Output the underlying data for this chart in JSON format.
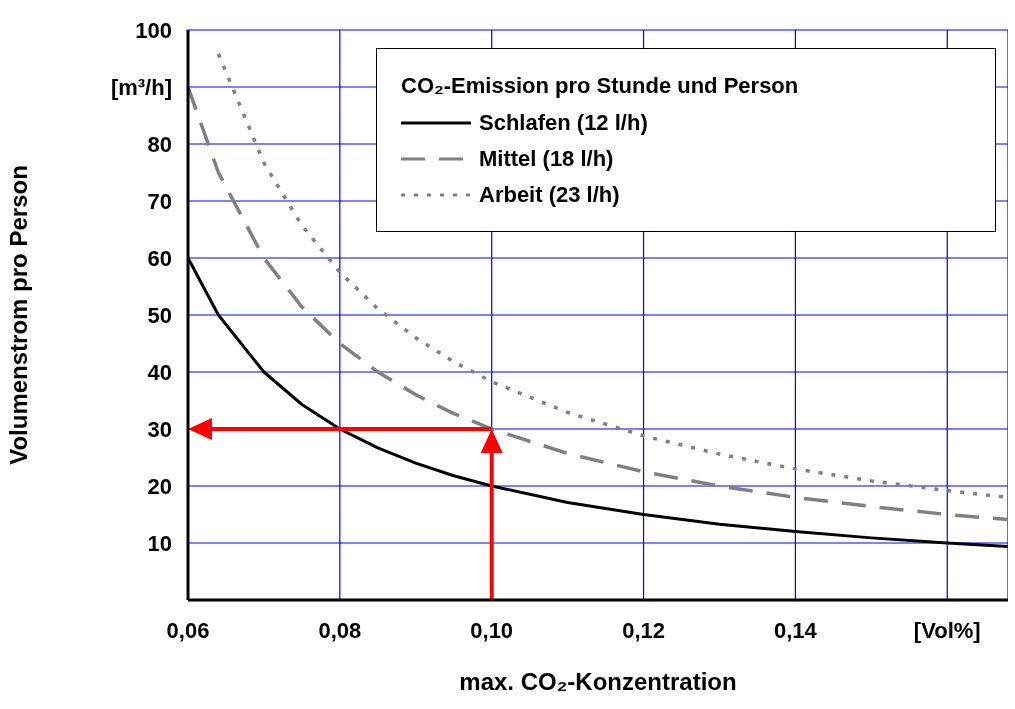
{
  "chart_data": {
    "type": "line",
    "xlabel": "max. CO₂-Konzentration",
    "ylabel": "Volumenstrom pro Person",
    "legend_title": "CO₂-Emission pro Stunde und Person",
    "x": [
      0.06,
      0.064,
      0.07,
      0.075,
      0.08,
      0.085,
      0.09,
      0.095,
      0.1,
      0.11,
      0.12,
      0.13,
      0.14,
      0.15,
      0.16,
      0.168
    ],
    "series": [
      {
        "name": "Schlafen (12 l/h)",
        "color": "#000000",
        "line_style": "solid",
        "values": [
          60,
          50,
          40,
          34.3,
          30,
          26.7,
          24,
          21.8,
          20,
          17.1,
          15,
          13.3,
          12,
          10.9,
          10,
          9.4
        ]
      },
      {
        "name": "Mittel (18 l/h)",
        "color": "#808080",
        "line_style": "dashed",
        "values": [
          90,
          75,
          60,
          51.4,
          45,
          40,
          36,
          32.7,
          30,
          25.7,
          22.5,
          20,
          18,
          16.4,
          15,
          14.1
        ]
      },
      {
        "name": "Arbeit (23 l/h)",
        "color": "#808080",
        "line_style": "dotted",
        "values": [
          null,
          95.8,
          76.7,
          65.7,
          57.5,
          51.1,
          46,
          41.8,
          38.3,
          32.9,
          28.8,
          25.6,
          23,
          20.9,
          19.2,
          18
        ]
      }
    ],
    "xlim": [
      0.06,
      0.168
    ],
    "xticks": [
      {
        "value": 0.06,
        "label": "0,06"
      },
      {
        "value": 0.08,
        "label": "0,08"
      },
      {
        "value": 0.1,
        "label": "0,10"
      },
      {
        "value": 0.12,
        "label": "0,12"
      },
      {
        "value": 0.14,
        "label": "0,14"
      },
      {
        "value": 0.16,
        "label": "[Vol%]"
      }
    ],
    "ylim": [
      0,
      100
    ],
    "yticks": [
      {
        "value": 0,
        "label": null
      },
      10,
      20,
      30,
      40,
      50,
      60,
      70,
      80,
      {
        "value": 90,
        "label": "[m³/h]"
      },
      100
    ],
    "ref_lines": [
      {
        "axis": "x",
        "value": 0.1,
        "color": "#ff0000"
      },
      {
        "axis": "y",
        "value": 30,
        "color": "#ff0000"
      }
    ],
    "grid": true,
    "legend": "top"
  }
}
